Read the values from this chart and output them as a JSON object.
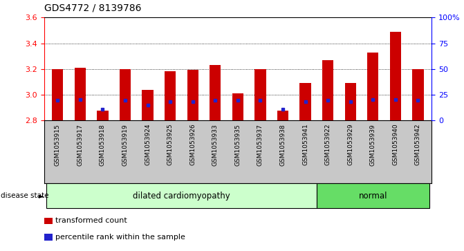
{
  "title": "GDS4772 / 8139786",
  "samples": [
    "GSM1053915",
    "GSM1053917",
    "GSM1053918",
    "GSM1053919",
    "GSM1053924",
    "GSM1053925",
    "GSM1053926",
    "GSM1053933",
    "GSM1053935",
    "GSM1053937",
    "GSM1053938",
    "GSM1053941",
    "GSM1053922",
    "GSM1053929",
    "GSM1053939",
    "GSM1053940",
    "GSM1053942"
  ],
  "bar_values": [
    3.2,
    3.21,
    2.875,
    3.2,
    3.04,
    3.185,
    3.195,
    3.23,
    3.01,
    3.2,
    2.875,
    3.09,
    3.27,
    3.09,
    3.33,
    3.49,
    3.2
  ],
  "blue_values": [
    2.955,
    2.965,
    2.885,
    2.955,
    2.92,
    2.945,
    2.945,
    2.955,
    2.955,
    2.955,
    2.885,
    2.945,
    2.955,
    2.945,
    2.965,
    2.965,
    2.955
  ],
  "disease_groups": [
    {
      "label": "dilated cardiomyopathy",
      "start": 0,
      "end": 12,
      "color": "#ccffcc"
    },
    {
      "label": "normal",
      "start": 12,
      "end": 17,
      "color": "#66dd66"
    }
  ],
  "ymin": 2.8,
  "ymax": 3.6,
  "yticks": [
    2.8,
    3.0,
    3.2,
    3.4,
    3.6
  ],
  "right_yticks": [
    0,
    25,
    50,
    75,
    100
  ],
  "bar_color": "#cc0000",
  "blue_color": "#2222cc",
  "tick_area_color": "#c8c8c8",
  "legend_items": [
    {
      "color": "#cc0000",
      "label": "transformed count"
    },
    {
      "color": "#2222cc",
      "label": "percentile rank within the sample"
    }
  ]
}
